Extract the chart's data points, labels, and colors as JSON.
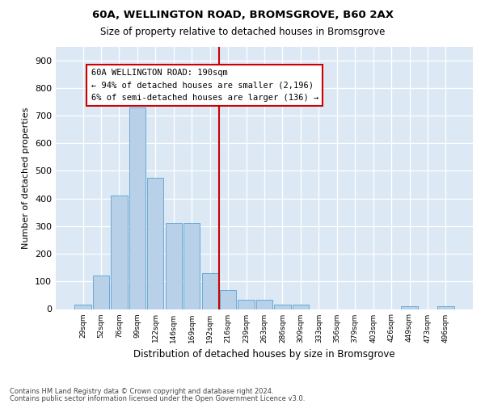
{
  "title1": "60A, WELLINGTON ROAD, BROMSGROVE, B60 2AX",
  "title2": "Size of property relative to detached houses in Bromsgrove",
  "xlabel": "Distribution of detached houses by size in Bromsgrove",
  "ylabel": "Number of detached properties",
  "bar_color": "#b8d0e8",
  "bar_edge_color": "#6aaad4",
  "background_color": "#dce9f5",
  "categories": [
    "29sqm",
    "52sqm",
    "76sqm",
    "99sqm",
    "122sqm",
    "146sqm",
    "169sqm",
    "192sqm",
    "216sqm",
    "239sqm",
    "263sqm",
    "286sqm",
    "309sqm",
    "333sqm",
    "356sqm",
    "379sqm",
    "403sqm",
    "426sqm",
    "449sqm",
    "473sqm",
    "496sqm"
  ],
  "values": [
    15,
    120,
    410,
    730,
    475,
    310,
    310,
    130,
    70,
    35,
    35,
    15,
    15,
    0,
    0,
    0,
    0,
    0,
    10,
    0,
    10
  ],
  "ylim": [
    0,
    950
  ],
  "yticks": [
    0,
    100,
    200,
    300,
    400,
    500,
    600,
    700,
    800,
    900
  ],
  "property_line_label": "60A WELLINGTON ROAD: 190sqm",
  "annotation_line1": "← 94% of detached houses are smaller (2,196)",
  "annotation_line2": "6% of semi-detached houses are larger (136) →",
  "footer1": "Contains HM Land Registry data © Crown copyright and database right 2024.",
  "footer2": "Contains public sector information licensed under the Open Government Licence v3.0.",
  "grid_color": "#ffffff",
  "annotation_box_color": "#ffffff",
  "annotation_box_edge": "#cc0000",
  "red_line_color": "#cc0000",
  "red_line_x": 7.5
}
